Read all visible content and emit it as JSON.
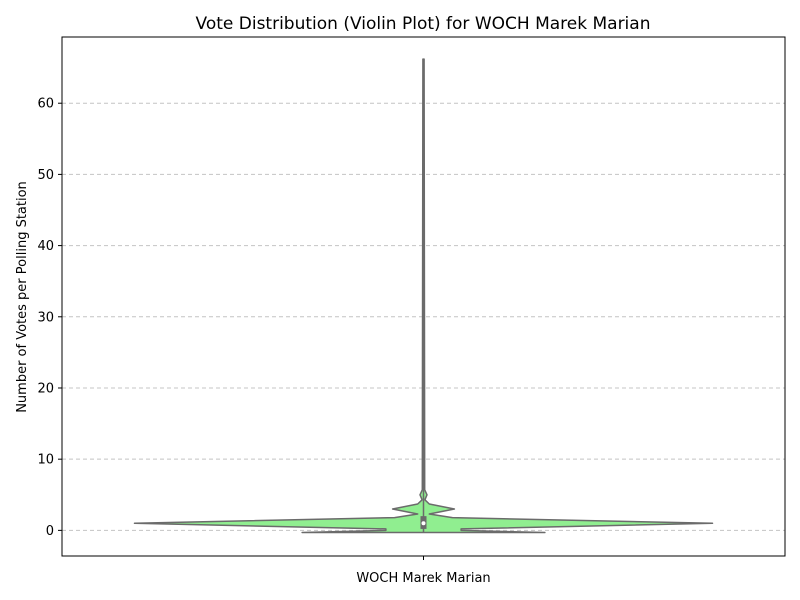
{
  "chart_data": {
    "type": "violin",
    "title": "Vote Distribution (Violin Plot) for WOCH Marek Marian",
    "xlabel": "",
    "ylabel": "Number of Votes per Polling Station",
    "categories": [
      "WOCH Marek Marian"
    ],
    "ylim": [
      -3.6,
      69.3
    ],
    "yticks": [
      0,
      10,
      20,
      30,
      40,
      50,
      60
    ],
    "grid": {
      "y": true,
      "style": "dashed"
    },
    "fill_color": "#90ee90",
    "edge_color": "#6b6b6b",
    "density_profile": [
      {
        "y": -0.3,
        "relative_width": 0.42
      },
      {
        "y": 0.0,
        "relative_width": 0.13
      },
      {
        "y": 0.2,
        "relative_width": 0.13
      },
      {
        "y": 1.0,
        "relative_width": 1.0
      },
      {
        "y": 1.8,
        "relative_width": 0.1
      },
      {
        "y": 2.3,
        "relative_width": 0.02
      },
      {
        "y": 3.0,
        "relative_width": 0.107
      },
      {
        "y": 3.7,
        "relative_width": 0.02
      },
      {
        "y": 4.3,
        "relative_width": 0.005
      },
      {
        "y": 5.0,
        "relative_width": 0.012
      },
      {
        "y": 5.7,
        "relative_width": 0.004
      },
      {
        "y": 66.2,
        "relative_width": 0.002
      }
    ],
    "summary": {
      "min": -0.3,
      "q1": 0.2,
      "median": 1.0,
      "q3": 2.0,
      "max": 66.2
    }
  }
}
